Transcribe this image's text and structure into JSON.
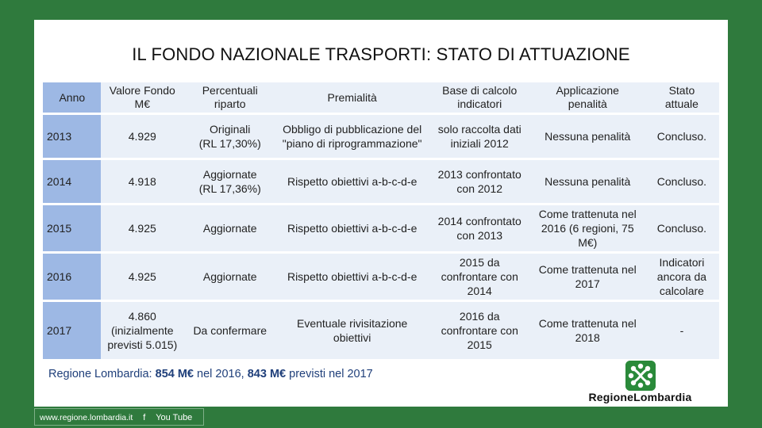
{
  "slide": {
    "title": "IL FONDO NAZIONALE TRASPORTI: STATO DI ATTUAZIONE"
  },
  "table": {
    "headers": {
      "anno": "Anno",
      "valore": "Valore Fondo\nM€",
      "percentuali": "Percentuali\nriparto",
      "premialita": "Premialità",
      "base": "Base di calcolo\nindicatori",
      "applicazione": "Applicazione\npenalità",
      "stato": "Stato\nattuale"
    },
    "rows": [
      {
        "anno": "2013",
        "valore": "4.929",
        "percentuali": "Originali\n(RL 17,30%)",
        "premialita": "Obbligo di pubblicazione del\n\"piano di riprogrammazione\"",
        "base": "solo raccolta dati\niniziali 2012",
        "applicazione": "Nessuna penalità",
        "stato": "Concluso."
      },
      {
        "anno": "2014",
        "valore": "4.918",
        "percentuali": "Aggiornate\n(RL 17,36%)",
        "premialita": "Rispetto obiettivi a-b-c-d-e",
        "base": "2013 confrontato\ncon 2012",
        "applicazione": "Nessuna penalità",
        "stato": "Concluso."
      },
      {
        "anno": "2015",
        "valore": "4.925",
        "percentuali": "Aggiornate",
        "premialita": "Rispetto obiettivi a-b-c-d-e",
        "base": "2014 confrontato\ncon 2013",
        "applicazione": "Come trattenuta nel\n2016 (6 regioni, 75\nM€)",
        "stato": "Concluso."
      },
      {
        "anno": "2016",
        "valore": "4.925",
        "percentuali": "Aggiornate",
        "premialita": "Rispetto obiettivi a-b-c-d-e",
        "base": "2015 da\nconfrontare con\n2014",
        "applicazione": "Come trattenuta nel\n2017",
        "stato": "Indicatori\nancora da\ncalcolare"
      },
      {
        "anno": "2017",
        "valore": "4.860\n(inizialmente\nprevisti 5.015)",
        "percentuali": "Da confermare",
        "premialita": "Eventuale rivisitazione\nobiettivi",
        "base": "2016 da\nconfrontare con\n2015",
        "applicazione": "Come trattenuta nel\n2018",
        "stato": "-"
      }
    ]
  },
  "footer": {
    "note_prefix": "Regione Lombardia: ",
    "note_value1": "854 M€",
    "note_mid1": " nel 2016, ",
    "note_value2": "843 M€",
    "note_suffix": " previsti nel 2017",
    "logo_text": "RegioneLombardia",
    "logo_icon": "regione-lombardia-logo-icon",
    "url": "www.regione.lombardia.it",
    "facebook_icon": "facebook-icon",
    "youtube_text": "You Tube"
  },
  "colors": {
    "frame_green": "#2f7a3d",
    "anno_column": "#9db8e4",
    "cell_background": "#eaf0f8",
    "footer_text": "#1f3f7a",
    "logo_green": "#2a8a3a"
  }
}
